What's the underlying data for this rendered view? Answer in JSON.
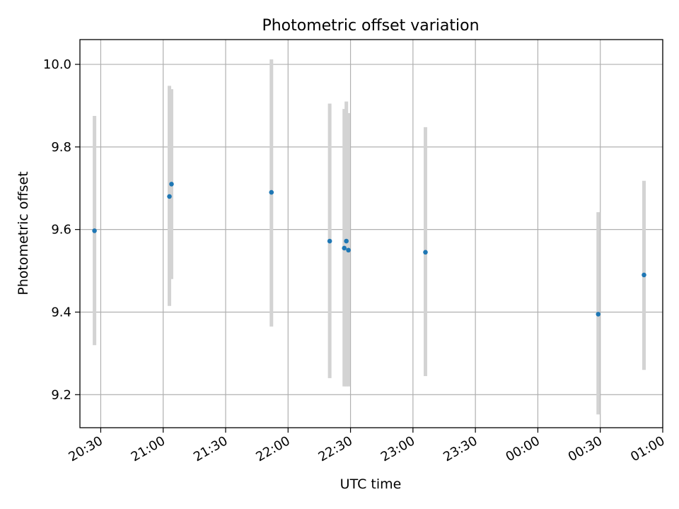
{
  "chart_data": {
    "type": "scatter",
    "title": "Photometric offset variation",
    "xlabel": "UTC time",
    "ylabel": "Photometric offset",
    "x_unit": "UTC time (HH:MM), spanning midnight",
    "xlim": [
      "20:20",
      "01:00"
    ],
    "ylim": [
      9.12,
      10.06
    ],
    "grid": true,
    "legend": "none",
    "x_ticks": [
      "20:30",
      "21:00",
      "21:30",
      "22:00",
      "22:30",
      "23:00",
      "23:30",
      "00:00",
      "00:30",
      "01:00"
    ],
    "y_ticks": [
      "9.2",
      "9.4",
      "9.6",
      "9.8",
      "10.0"
    ],
    "colors": {
      "points": "#1f77b4",
      "errorbars": "#d3d3d3",
      "grid": "#b0b0b0"
    },
    "points": [
      {
        "x": "20:27",
        "y": 9.597,
        "yerr_low": 9.32,
        "yerr_high": 9.875
      },
      {
        "x": "21:03",
        "y": 9.68,
        "yerr_low": 9.415,
        "yerr_high": 9.948
      },
      {
        "x": "21:04",
        "y": 9.71,
        "yerr_low": 9.48,
        "yerr_high": 9.94
      },
      {
        "x": "21:52",
        "y": 9.69,
        "yerr_low": 9.365,
        "yerr_high": 10.012
      },
      {
        "x": "22:20",
        "y": 9.572,
        "yerr_low": 9.24,
        "yerr_high": 9.905
      },
      {
        "x": "22:27",
        "y": 9.555,
        "yerr_low": 9.22,
        "yerr_high": 9.892
      },
      {
        "x": "22:28",
        "y": 9.572,
        "yerr_low": 9.22,
        "yerr_high": 9.91
      },
      {
        "x": "22:29",
        "y": 9.55,
        "yerr_low": 9.22,
        "yerr_high": 9.882
      },
      {
        "x": "23:06",
        "y": 9.545,
        "yerr_low": 9.245,
        "yerr_high": 9.848
      },
      {
        "x": "00:29",
        "y": 9.395,
        "yerr_low": 9.152,
        "yerr_high": 9.642
      },
      {
        "x": "00:51",
        "y": 9.49,
        "yerr_low": 9.26,
        "yerr_high": 9.718
      }
    ]
  }
}
